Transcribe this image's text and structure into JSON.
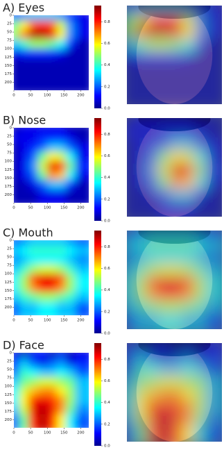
{
  "chart_data": [
    {
      "type": "heatmap",
      "title": "A) Eyes",
      "xlim": [
        0,
        224
      ],
      "ylim": [
        0,
        224
      ],
      "xticks": [
        0,
        50,
        100,
        150,
        200
      ],
      "yticks": [
        0,
        25,
        50,
        75,
        100,
        125,
        150,
        175,
        200
      ],
      "zlim": [
        0,
        0.95
      ],
      "zticks": [
        {
          "value": 0,
          "label": "0.0"
        },
        0.2,
        0.4,
        0.6,
        0.8
      ],
      "values": [
        [
          0.2,
          0.25,
          0.3,
          0.3,
          0.3,
          0.25,
          0.15,
          0.1
        ],
        [
          0.45,
          0.6,
          0.75,
          0.8,
          0.75,
          0.55,
          0.25,
          0.1
        ],
        [
          0.5,
          0.7,
          0.9,
          0.9,
          0.85,
          0.6,
          0.25,
          0.1
        ],
        [
          0.3,
          0.4,
          0.5,
          0.5,
          0.45,
          0.35,
          0.15,
          0.05
        ],
        [
          0.1,
          0.15,
          0.15,
          0.15,
          0.15,
          0.1,
          0.05,
          0.05
        ],
        [
          0.05,
          0.05,
          0.05,
          0.05,
          0.05,
          0.05,
          0.05,
          0.05
        ],
        [
          0.05,
          0.05,
          0.05,
          0.05,
          0.05,
          0.05,
          0.05,
          0.05
        ],
        [
          0.05,
          0.05,
          0.05,
          0.05,
          0.05,
          0.05,
          0.05,
          0.05
        ]
      ]
    },
    {
      "type": "heatmap",
      "title": "B) Nose",
      "xlim": [
        0,
        224
      ],
      "ylim": [
        0,
        224
      ],
      "xticks": [
        0,
        50,
        100,
        150,
        200
      ],
      "yticks": [
        0,
        25,
        50,
        75,
        100,
        125,
        150,
        175,
        200
      ],
      "zlim": [
        0,
        0.95
      ],
      "zticks": [
        {
          "value": 0,
          "label": "0.0"
        },
        0.2,
        0.4,
        0.6,
        0.8
      ],
      "values": [
        [
          0.05,
          0.1,
          0.1,
          0.1,
          0.1,
          0.1,
          0.05,
          0.05
        ],
        [
          0.1,
          0.1,
          0.1,
          0.15,
          0.15,
          0.15,
          0.1,
          0.05
        ],
        [
          0.05,
          0.1,
          0.15,
          0.2,
          0.3,
          0.3,
          0.2,
          0.1
        ],
        [
          0.05,
          0.1,
          0.2,
          0.45,
          0.6,
          0.55,
          0.35,
          0.1
        ],
        [
          0.05,
          0.1,
          0.25,
          0.55,
          0.85,
          0.8,
          0.45,
          0.15
        ],
        [
          0.05,
          0.1,
          0.2,
          0.45,
          0.7,
          0.65,
          0.35,
          0.1
        ],
        [
          0.05,
          0.05,
          0.1,
          0.2,
          0.3,
          0.3,
          0.15,
          0.05
        ],
        [
          0.05,
          0.05,
          0.05,
          0.1,
          0.1,
          0.1,
          0.05,
          0.05
        ]
      ]
    },
    {
      "type": "heatmap",
      "title": "C) Mouth",
      "xlim": [
        0,
        224
      ],
      "ylim": [
        0,
        224
      ],
      "xticks": [
        0,
        50,
        100,
        150,
        200
      ],
      "yticks": [
        0,
        25,
        50,
        75,
        100,
        125,
        150,
        175,
        200
      ],
      "zlim": [
        0,
        0.95
      ],
      "zticks": [
        {
          "value": 0,
          "label": "0.0"
        },
        0.2,
        0.4,
        0.6,
        0.8
      ],
      "values": [
        [
          0.2,
          0.25,
          0.3,
          0.3,
          0.3,
          0.3,
          0.25,
          0.2
        ],
        [
          0.3,
          0.35,
          0.4,
          0.4,
          0.4,
          0.4,
          0.35,
          0.3
        ],
        [
          0.25,
          0.3,
          0.35,
          0.35,
          0.35,
          0.35,
          0.3,
          0.25
        ],
        [
          0.3,
          0.4,
          0.5,
          0.55,
          0.55,
          0.5,
          0.4,
          0.3
        ],
        [
          0.35,
          0.5,
          0.75,
          0.85,
          0.85,
          0.75,
          0.5,
          0.35
        ],
        [
          0.35,
          0.5,
          0.7,
          0.8,
          0.8,
          0.7,
          0.5,
          0.35
        ],
        [
          0.3,
          0.4,
          0.45,
          0.5,
          0.5,
          0.45,
          0.4,
          0.3
        ],
        [
          0.2,
          0.3,
          0.3,
          0.35,
          0.35,
          0.3,
          0.3,
          0.2
        ]
      ]
    },
    {
      "type": "heatmap",
      "title": "D) Face",
      "xlim": [
        0,
        224
      ],
      "ylim": [
        0,
        224
      ],
      "xticks": [
        0,
        50,
        100,
        150,
        200
      ],
      "yticks": [
        0,
        25,
        50,
        75,
        100,
        125,
        150,
        175,
        200
      ],
      "zlim": [
        0,
        0.95
      ],
      "zticks": [
        {
          "value": 0,
          "label": "0.0"
        },
        0.2,
        0.4,
        0.6,
        0.8
      ],
      "values": [
        [
          0.1,
          0.05,
          0.1,
          0.15,
          0.05,
          0.1,
          0.05,
          0.1
        ],
        [
          0.15,
          0.3,
          0.2,
          0.1,
          0.2,
          0.25,
          0.1,
          0.15
        ],
        [
          0.2,
          0.4,
          0.35,
          0.3,
          0.3,
          0.35,
          0.3,
          0.2
        ],
        [
          0.3,
          0.45,
          0.5,
          0.55,
          0.55,
          0.5,
          0.45,
          0.3
        ],
        [
          0.35,
          0.55,
          0.65,
          0.7,
          0.7,
          0.6,
          0.5,
          0.3
        ],
        [
          0.35,
          0.6,
          0.8,
          0.85,
          0.8,
          0.7,
          0.5,
          0.3
        ],
        [
          0.3,
          0.55,
          0.85,
          0.9,
          0.85,
          0.7,
          0.45,
          0.25
        ],
        [
          0.2,
          0.45,
          0.8,
          0.9,
          0.8,
          0.6,
          0.35,
          0.2
        ]
      ]
    }
  ]
}
